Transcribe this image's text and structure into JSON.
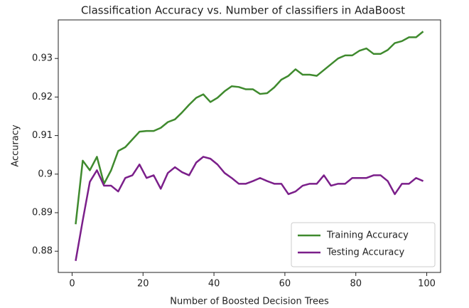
{
  "chart_data": {
    "type": "line",
    "title": "Classification Accuracy vs. Number of classifiers in AdaBoost",
    "xlabel": "Number of Boosted Decision Trees",
    "ylabel": "Accuracy",
    "x": [
      1,
      3,
      5,
      7,
      9,
      11,
      13,
      15,
      17,
      19,
      21,
      23,
      25,
      27,
      29,
      31,
      33,
      35,
      37,
      39,
      41,
      43,
      45,
      47,
      49,
      51,
      53,
      55,
      57,
      59,
      61,
      63,
      65,
      67,
      69,
      71,
      73,
      75,
      77,
      79,
      81,
      83,
      85,
      87,
      89,
      91,
      93,
      95,
      97,
      99
    ],
    "series": [
      {
        "name": "Training Accuracy",
        "color": "#3f8a2e",
        "values": [
          0.887,
          0.9035,
          0.901,
          0.9045,
          0.8975,
          0.901,
          0.906,
          0.907,
          0.909,
          0.911,
          0.9112,
          0.9112,
          0.912,
          0.9135,
          0.9142,
          0.916,
          0.918,
          0.9198,
          0.9207,
          0.9187,
          0.9198,
          0.9215,
          0.9228,
          0.9226,
          0.922,
          0.922,
          0.9208,
          0.921,
          0.9225,
          0.9245,
          0.9255,
          0.9272,
          0.9258,
          0.9258,
          0.9255,
          0.927,
          0.9285,
          0.93,
          0.9308,
          0.9308,
          0.932,
          0.9326,
          0.9312,
          0.9312,
          0.9322,
          0.934,
          0.9345,
          0.9355,
          0.9355,
          0.937
        ]
      },
      {
        "name": "Testing Accuracy",
        "color": "#7b1f8a",
        "values": [
          0.8775,
          0.888,
          0.898,
          0.901,
          0.897,
          0.897,
          0.8955,
          0.899,
          0.8997,
          0.9025,
          0.899,
          0.8997,
          0.8962,
          0.9003,
          0.9018,
          0.9005,
          0.8997,
          0.903,
          0.9045,
          0.904,
          0.9025,
          0.9003,
          0.899,
          0.8975,
          0.8975,
          0.8982,
          0.899,
          0.8982,
          0.8975,
          0.8975,
          0.8948,
          0.8955,
          0.897,
          0.8975,
          0.8975,
          0.8997,
          0.897,
          0.8975,
          0.8975,
          0.899,
          0.899,
          0.899,
          0.8997,
          0.8997,
          0.8982,
          0.8948,
          0.8975,
          0.8975,
          0.899,
          0.8982
        ]
      }
    ],
    "xlim": [
      -3.9,
      103.9
    ],
    "xticks": [
      0,
      20,
      40,
      60,
      80,
      100
    ],
    "ylim": [
      0.8745,
      0.94
    ],
    "yticks": [
      0.88,
      0.89,
      0.9,
      0.91,
      0.92,
      0.93
    ],
    "legend": "lower right",
    "grid": false
  }
}
